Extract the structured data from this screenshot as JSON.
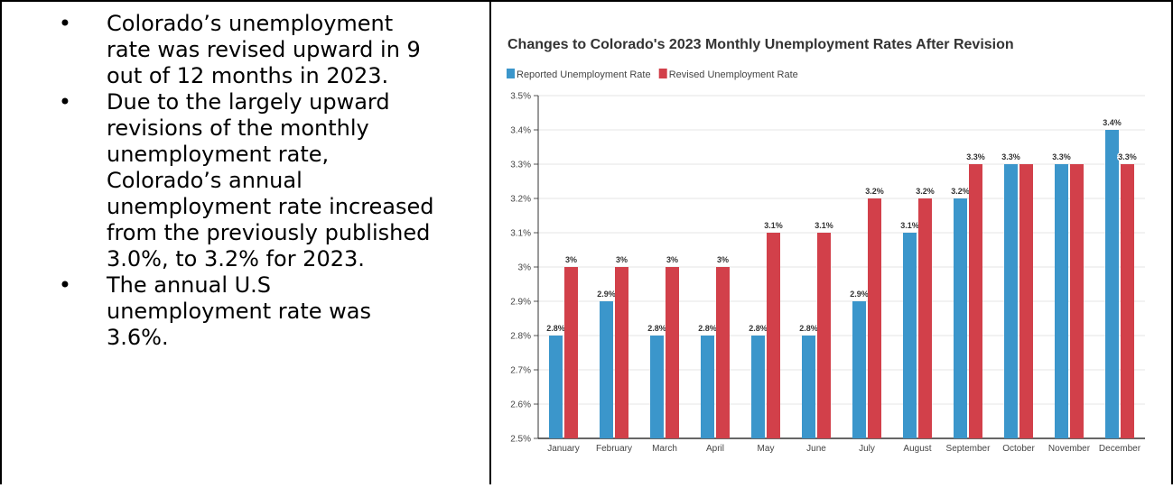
{
  "bullets": [
    "Colorado’s unemployment rate was revised upward in 9 out of 12 months in 2023.",
    "Due to the largely upward revisions of the monthly unemployment rate, Colorado’s annual unemployment rate increased from the previously published 3.0%, to 3.2% for 2023.",
    "The annual U.S unemployment rate was 3.6%."
  ],
  "bullet_lines": [
    [
      "Colorado’s unemployment",
      "rate was revised upward in 9",
      "out of 12 months in 2023."
    ],
    [
      "Due to the largely upward",
      "revisions of the monthly",
      "unemployment rate,",
      "Colorado’s annual",
      "unemployment rate increased",
      "from the previously published",
      "3.0%, to 3.2% for 2023."
    ],
    [
      "The annual U.S",
      "unemployment rate was",
      "3.6%."
    ]
  ],
  "bullet_glyph": "•",
  "chart_data": {
    "type": "bar",
    "title": "Changes to Colorado's 2023 Monthly Unemployment Rates After Revision",
    "xlabel": "",
    "ylabel": "",
    "ylim": [
      2.5,
      3.5
    ],
    "yticks": [
      "2.5%",
      "2.6%",
      "2.7%",
      "2.8%",
      "2.9%",
      "3%",
      "3.1%",
      "3.2%",
      "3.3%",
      "3.4%",
      "3.5%"
    ],
    "grid": true,
    "legend_position": "top-left",
    "categories": [
      "January",
      "February",
      "March",
      "April",
      "May",
      "June",
      "July",
      "August",
      "September",
      "October",
      "November",
      "December"
    ],
    "series": [
      {
        "name": "Reported Unemployment Rate",
        "color": "#3b96cb",
        "values": [
          2.8,
          2.9,
          2.8,
          2.8,
          2.8,
          2.8,
          2.9,
          3.1,
          3.2,
          3.3,
          3.3,
          3.4
        ],
        "labels": [
          "2.8%",
          "2.9%",
          "2.8%",
          "2.8%",
          "2.8%",
          "2.8%",
          "2.9%",
          "3.1%",
          "3.2%",
          "3.3%",
          "3.3%",
          "3.4%"
        ]
      },
      {
        "name": "Revised Unemployment Rate",
        "color": "#d2404a",
        "values": [
          3.0,
          3.0,
          3.0,
          3.0,
          3.1,
          3.1,
          3.2,
          3.2,
          3.3,
          3.3,
          3.3,
          3.3
        ],
        "labels": [
          "3%",
          "3%",
          "3%",
          "3%",
          "3.1%",
          "3.1%",
          "3.2%",
          "3.2%",
          "3.3%",
          "",
          "",
          "3.3%"
        ]
      }
    ]
  }
}
